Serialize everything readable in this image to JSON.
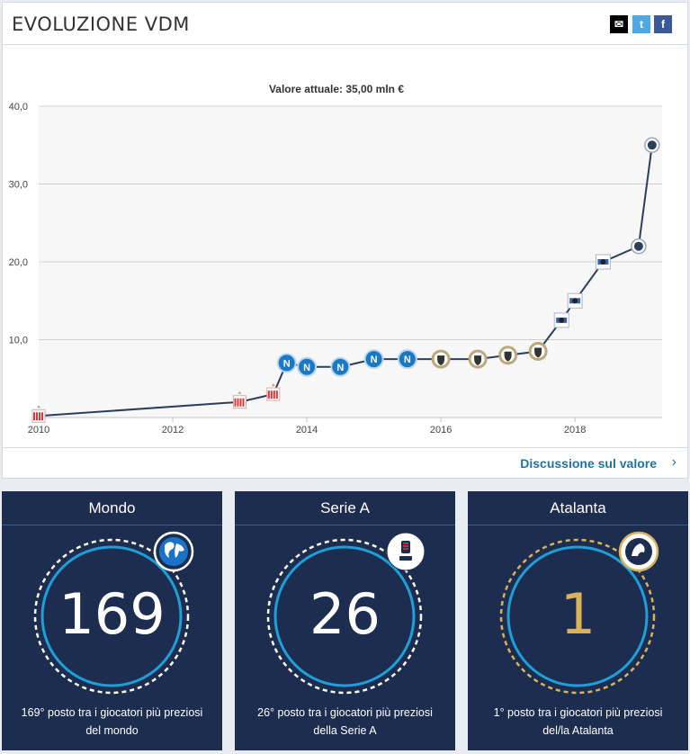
{
  "header": {
    "title": "EVOLUZIONE VDM"
  },
  "share": {
    "mail_icon": "✉",
    "twitter_icon": "t",
    "facebook_icon": "f"
  },
  "footer": {
    "link_label": "Discussione sul valore",
    "arrow": "›"
  },
  "colors": {
    "line": "#2b3f5c",
    "grid": "#d0d0d0",
    "blue_ring": "#1e9fd8",
    "gold": "#d9b35c",
    "napoli": "#1a79c2",
    "udinese": "#bba97a",
    "granada": "#d23a3a",
    "sampdoria": "#3a5fb0",
    "atalanta": "#2b3f5c"
  },
  "chart_data": {
    "type": "line",
    "title": "Valore attuale: 35,00 mln €",
    "xlabel": "",
    "ylabel": "",
    "x_ticks": [
      "2010",
      "2012",
      "2014",
      "2016",
      "2018"
    ],
    "y_ticks": [
      "10,0",
      "20,0",
      "30,0",
      "40,0"
    ],
    "xlim": [
      2010.0,
      2019.3
    ],
    "ylim": [
      0,
      40
    ],
    "grid": true,
    "series": [
      {
        "points": [
          {
            "x": 2010.0,
            "y": 0.2,
            "club": "granada-icon"
          },
          {
            "x": 2013.0,
            "y": 2.0,
            "club": "granada-icon"
          },
          {
            "x": 2013.5,
            "y": 3.0,
            "club": "granada-icon"
          },
          {
            "x": 2013.7,
            "y": 7.0,
            "club": "napoli-icon"
          },
          {
            "x": 2014.0,
            "y": 6.5,
            "club": "napoli-icon"
          },
          {
            "x": 2014.5,
            "y": 6.5,
            "club": "napoli-icon"
          },
          {
            "x": 2015.0,
            "y": 7.5,
            "club": "napoli-icon"
          },
          {
            "x": 2015.5,
            "y": 7.5,
            "club": "napoli-icon"
          },
          {
            "x": 2016.0,
            "y": 7.5,
            "club": "udinese-icon"
          },
          {
            "x": 2016.55,
            "y": 7.5,
            "club": "udinese-icon"
          },
          {
            "x": 2017.0,
            "y": 8.0,
            "club": "udinese-icon"
          },
          {
            "x": 2017.45,
            "y": 8.5,
            "club": "udinese-icon"
          },
          {
            "x": 2017.8,
            "y": 12.5,
            "club": "sampdoria-icon"
          },
          {
            "x": 2018.0,
            "y": 15.0,
            "club": "sampdoria-icon"
          },
          {
            "x": 2018.42,
            "y": 20.0,
            "club": "sampdoria-icon"
          },
          {
            "x": 2018.95,
            "y": 22.0,
            "club": "atalanta-icon"
          },
          {
            "x": 2019.15,
            "y": 35.0,
            "club": "atalanta-icon"
          }
        ]
      }
    ]
  },
  "cards": [
    {
      "label": "Mondo",
      "rank": "169",
      "description": "169° posto tra i giocatori più preziosi del mondo",
      "icon": "globe-icon",
      "ring": "blue"
    },
    {
      "label": "Serie A",
      "rank": "26",
      "description": "26° posto tra i giocatori più preziosi della Serie A",
      "icon": "serie-a-logo-icon",
      "ring": "blue"
    },
    {
      "label": "Atalanta",
      "rank": "1",
      "description": "1° posto tra i giocatori più preziosi del/la Atalanta",
      "icon": "atalanta-logo-icon",
      "ring": "gold"
    }
  ]
}
